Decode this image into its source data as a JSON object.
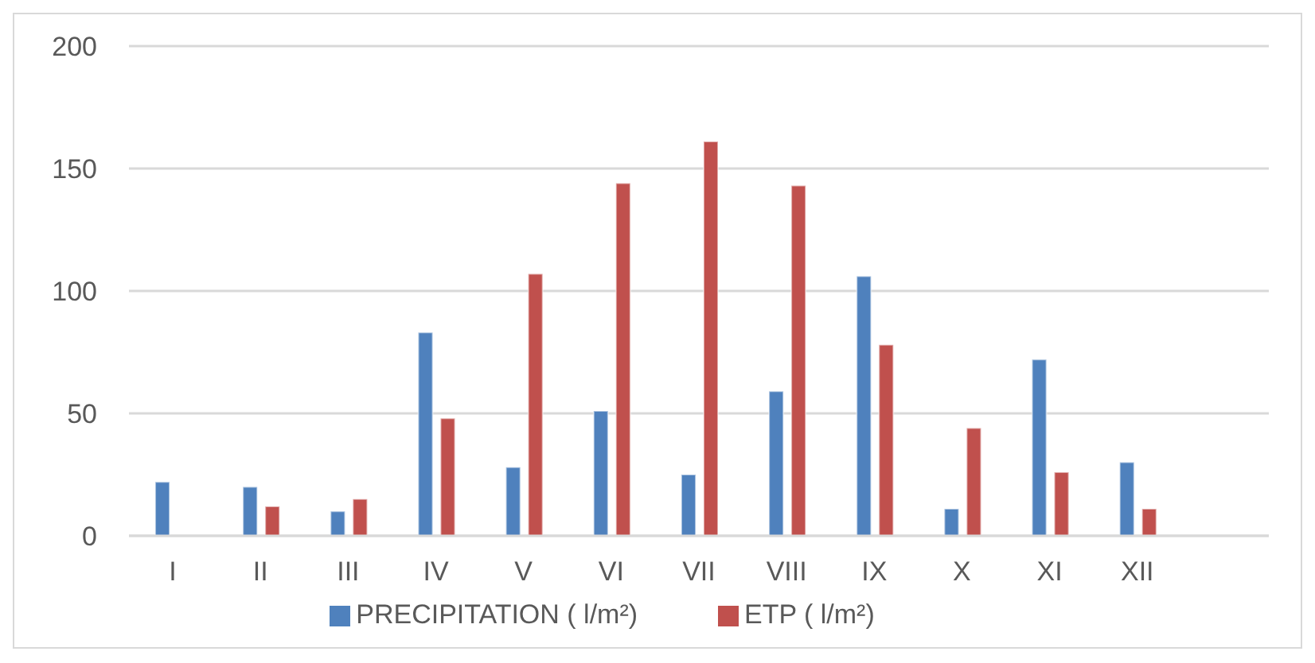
{
  "chart_data": {
    "type": "bar",
    "categories": [
      "I",
      "II",
      "III",
      "IV",
      "V",
      "VI",
      "VII",
      "VIII",
      "IX",
      "X",
      "XI",
      "XII",
      null
    ],
    "series": [
      {
        "name": "PRECIPITATION ( l/m²)",
        "color": "#4f81bd",
        "values": [
          22,
          20,
          10,
          83,
          28,
          51,
          25,
          59,
          106,
          11,
          72,
          30,
          null
        ]
      },
      {
        "name": "ETP ( l/m²)",
        "color": "#c0504d",
        "values": [
          null,
          12,
          15,
          48,
          107,
          144,
          161,
          143,
          78,
          44,
          26,
          11,
          null
        ]
      }
    ],
    "ylim": [
      0,
      200
    ],
    "yticks": [
      0,
      50,
      100,
      150,
      200
    ],
    "grid": "y",
    "legend": "bottom"
  }
}
